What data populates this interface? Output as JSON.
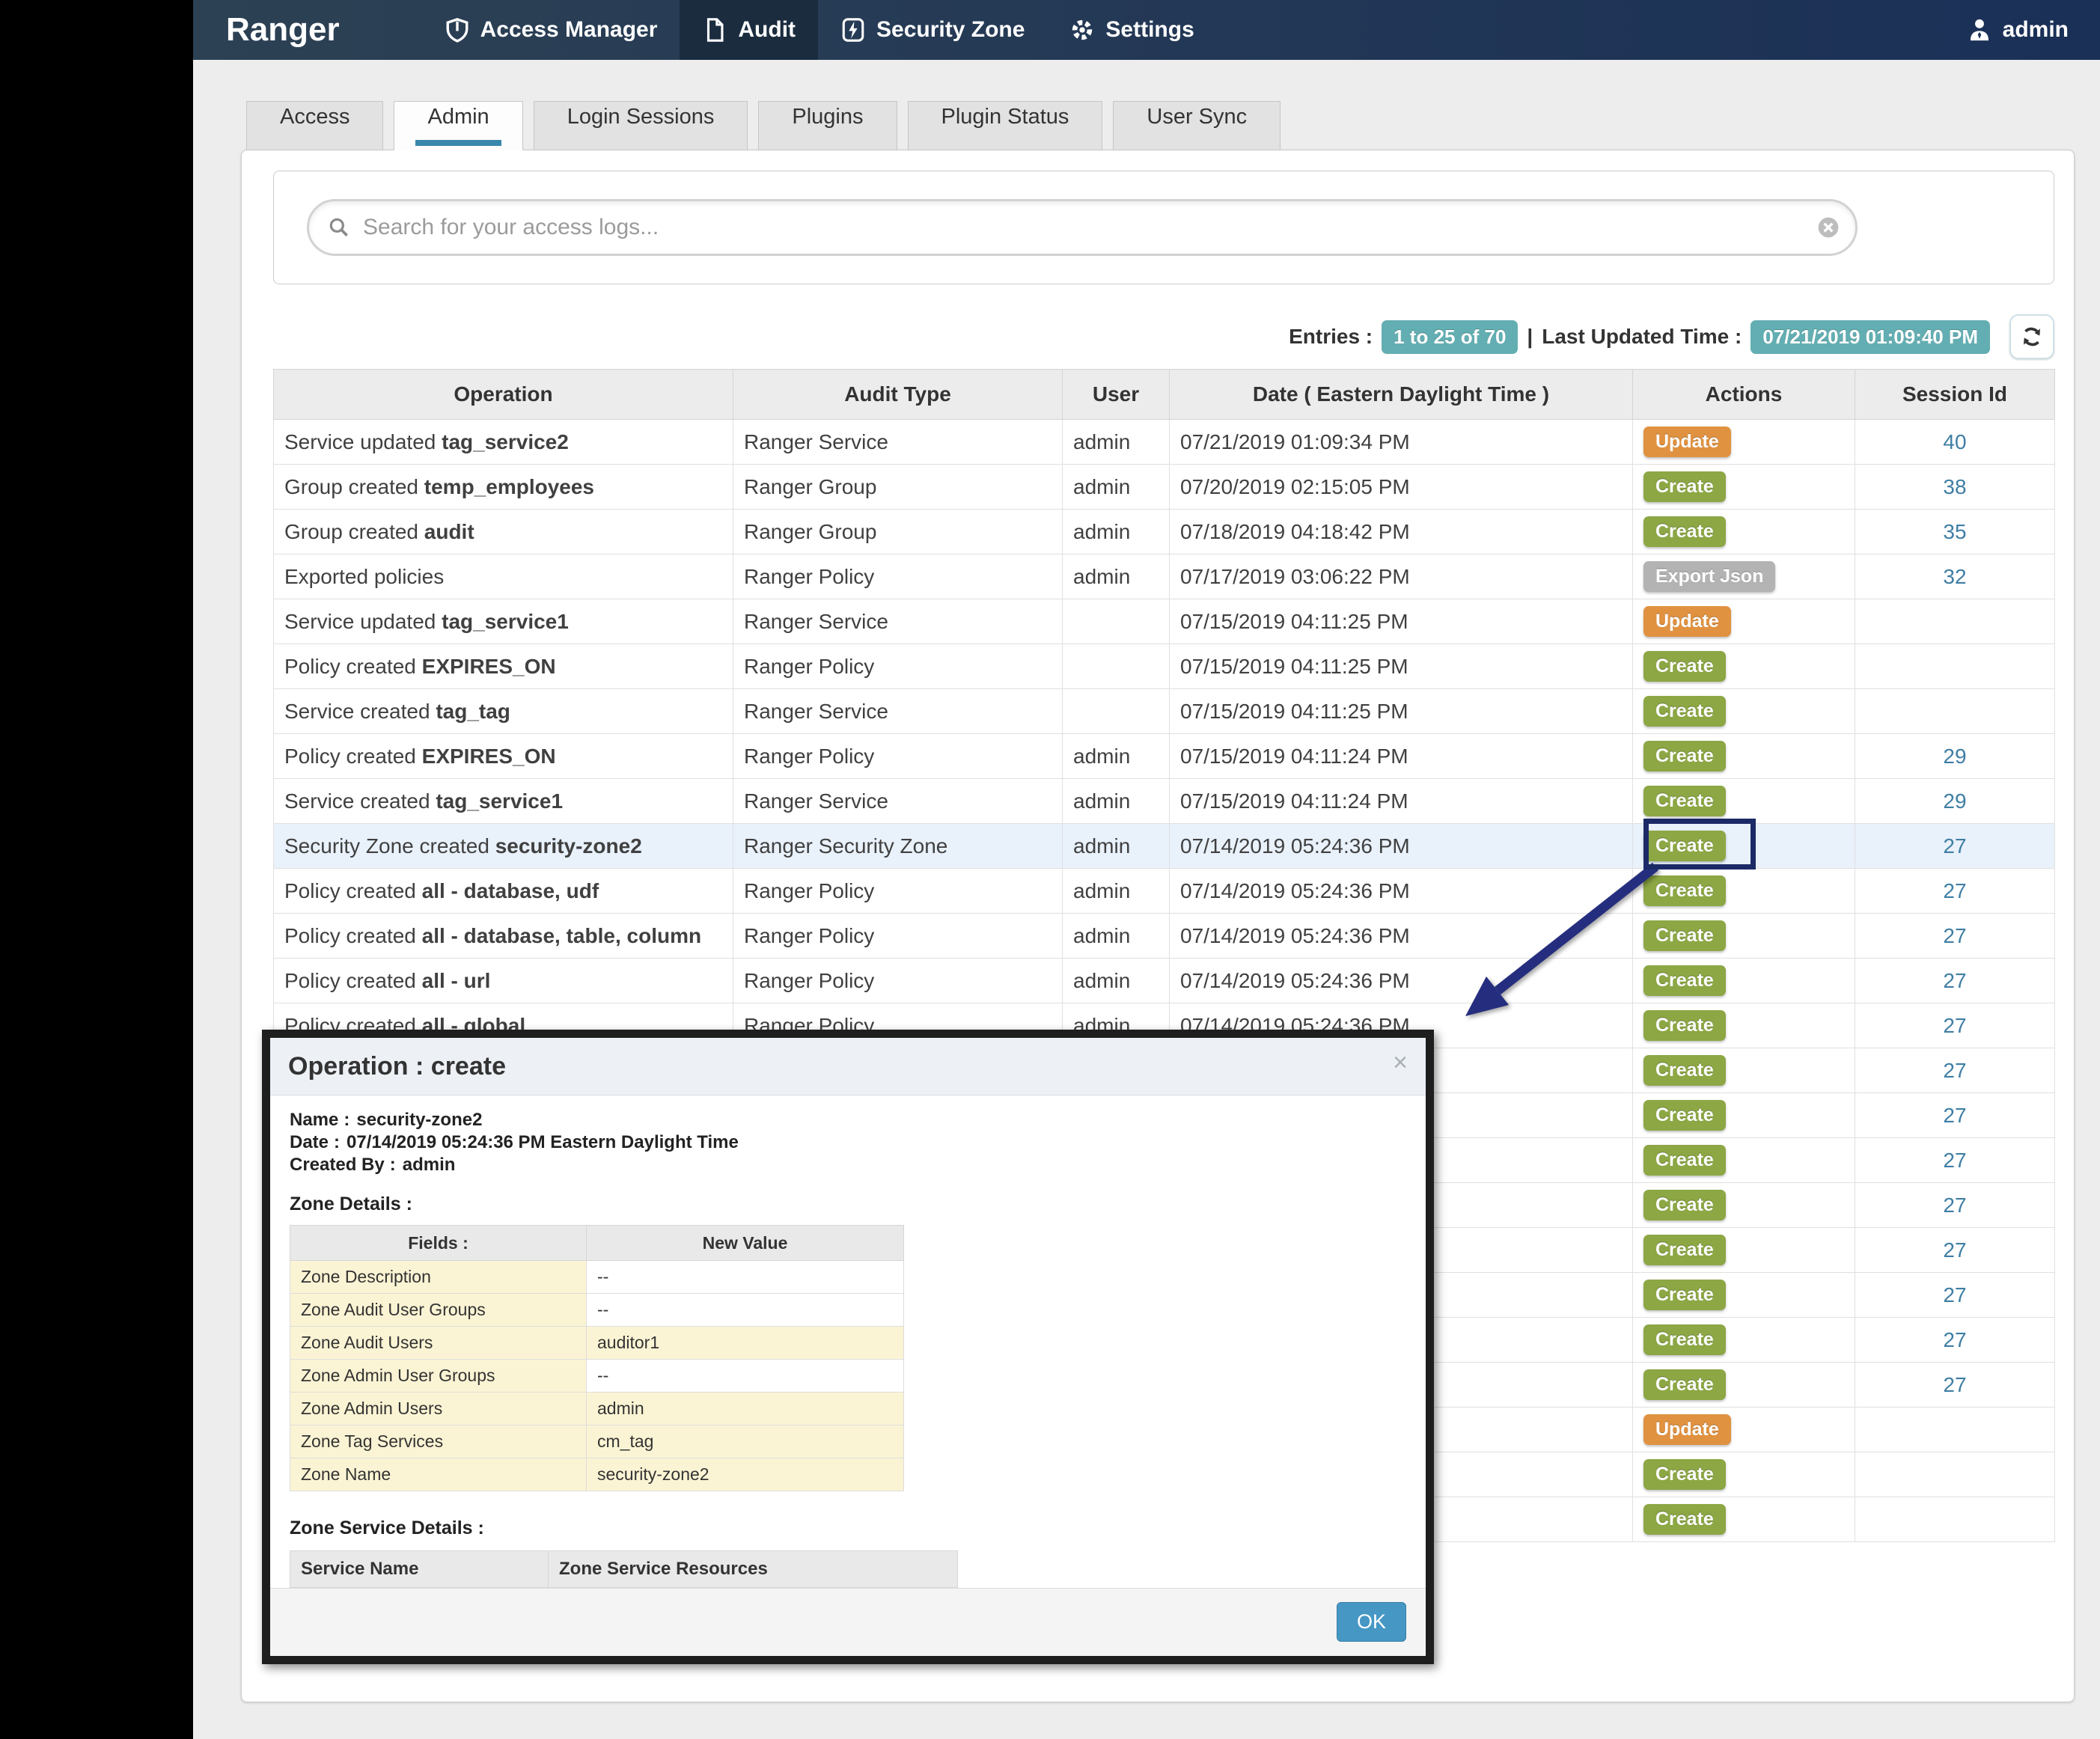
{
  "colors": {
    "navbar_left": "#2d4154",
    "navbar_right": "#1a3057",
    "create_badge": "#8ca744",
    "update_badge": "#e09241",
    "export_badge": "#b3b3b3",
    "teal_badge": "#63aeb2",
    "session_link": "#3f7ea4",
    "tab_underline": "#3a87ad",
    "highlight_row": "#e9f1fb",
    "annotation_navy": "#252e7e",
    "ok_button": "#4697c4"
  },
  "navbar": {
    "brand": "Ranger",
    "items": [
      {
        "label": "Access Manager",
        "icon": "shield-icon",
        "active": false
      },
      {
        "label": "Audit",
        "icon": "file-icon",
        "active": true
      },
      {
        "label": "Security Zone",
        "icon": "bolt-icon",
        "active": false
      },
      {
        "label": "Settings",
        "icon": "gear-icon",
        "active": false
      }
    ],
    "user": {
      "label": "admin",
      "icon": "user-icon"
    }
  },
  "tabs": [
    {
      "label": "Access",
      "active": false
    },
    {
      "label": "Admin",
      "active": true
    },
    {
      "label": "Login Sessions",
      "active": false
    },
    {
      "label": "Plugins",
      "active": false
    },
    {
      "label": "Plugin Status",
      "active": false
    },
    {
      "label": "User Sync",
      "active": false
    }
  ],
  "search": {
    "placeholder": "Search for your access logs...",
    "search_icon": "search-icon",
    "clear_icon": "clear-icon"
  },
  "entries": {
    "label": "Entries :",
    "range": "1 to 25 of 70",
    "separator": "|",
    "updated_label": "Last Updated Time :",
    "updated_time": "07/21/2019 01:09:40 PM",
    "refresh_icon": "refresh-icon"
  },
  "table": {
    "columns": [
      "Operation",
      "Audit Type",
      "User",
      "Date ( Eastern Daylight Time )",
      "Actions",
      "Session Id"
    ],
    "rows": [
      {
        "prefix": "Service updated",
        "bold": "tag_service2",
        "type": "Ranger Service",
        "user": "admin",
        "date": "07/21/2019 01:09:34 PM",
        "action": "Update",
        "style": "update",
        "session": "40"
      },
      {
        "prefix": "Group created",
        "bold": "temp_employees",
        "type": "Ranger Group",
        "user": "admin",
        "date": "07/20/2019 02:15:05 PM",
        "action": "Create",
        "style": "create",
        "session": "38"
      },
      {
        "prefix": "Group created",
        "bold": "audit",
        "type": "Ranger Group",
        "user": "admin",
        "date": "07/18/2019 04:18:42 PM",
        "action": "Create",
        "style": "create",
        "session": "35"
      },
      {
        "prefix": "Exported policies",
        "bold": "",
        "type": "Ranger Policy",
        "user": "admin",
        "date": "07/17/2019 03:06:22 PM",
        "action": "Export Json",
        "style": "export",
        "session": "32"
      },
      {
        "prefix": "Service updated",
        "bold": "tag_service1",
        "type": "Ranger Service",
        "user": "",
        "date": "07/15/2019 04:11:25 PM",
        "action": "Update",
        "style": "update",
        "session": ""
      },
      {
        "prefix": "Policy created",
        "bold": "EXPIRES_ON",
        "type": "Ranger Policy",
        "user": "",
        "date": "07/15/2019 04:11:25 PM",
        "action": "Create",
        "style": "create",
        "session": ""
      },
      {
        "prefix": "Service created",
        "bold": "tag_tag",
        "type": "Ranger Service",
        "user": "",
        "date": "07/15/2019 04:11:25 PM",
        "action": "Create",
        "style": "create",
        "session": ""
      },
      {
        "prefix": "Policy created",
        "bold": "EXPIRES_ON",
        "type": "Ranger Policy",
        "user": "admin",
        "date": "07/15/2019 04:11:24 PM",
        "action": "Create",
        "style": "create",
        "session": "29"
      },
      {
        "prefix": "Service created",
        "bold": "tag_service1",
        "type": "Ranger Service",
        "user": "admin",
        "date": "07/15/2019 04:11:24 PM",
        "action": "Create",
        "style": "create",
        "session": "29"
      },
      {
        "prefix": "Security Zone created",
        "bold": "security-zone2",
        "type": "Ranger Security Zone",
        "user": "admin",
        "date": "07/14/2019 05:24:36 PM",
        "action": "Create",
        "style": "create",
        "session": "27",
        "highlight": true,
        "boxed": true
      },
      {
        "prefix": "Policy created",
        "bold": "all - database, udf",
        "type": "Ranger Policy",
        "user": "admin",
        "date": "07/14/2019 05:24:36 PM",
        "action": "Create",
        "style": "create",
        "session": "27"
      },
      {
        "prefix": "Policy created",
        "bold": "all - database, table, column",
        "type": "Ranger Policy",
        "user": "admin",
        "date": "07/14/2019 05:24:36 PM",
        "action": "Create",
        "style": "create",
        "session": "27"
      },
      {
        "prefix": "Policy created",
        "bold": "all - url",
        "type": "Ranger Policy",
        "user": "admin",
        "date": "07/14/2019 05:24:36 PM",
        "action": "Create",
        "style": "create",
        "session": "27"
      },
      {
        "prefix": "Policy created",
        "bold": "all - global",
        "type": "Ranger Policy",
        "user": "admin",
        "date": "07/14/2019 05:24:36 PM",
        "action": "Create",
        "style": "create",
        "session": "27"
      },
      {
        "prefix": "",
        "bold": "",
        "type": "",
        "user": "",
        "date": "",
        "action": "Create",
        "style": "create",
        "session": "27",
        "covered": true
      },
      {
        "prefix": "",
        "bold": "",
        "type": "",
        "user": "",
        "date": "",
        "action": "Create",
        "style": "create",
        "session": "27",
        "covered": true
      },
      {
        "prefix": "",
        "bold": "",
        "type": "",
        "user": "",
        "date": "",
        "action": "Create",
        "style": "create",
        "session": "27",
        "covered": true
      },
      {
        "prefix": "",
        "bold": "",
        "type": "",
        "user": "",
        "date": "",
        "action": "Create",
        "style": "create",
        "session": "27",
        "covered": true
      },
      {
        "prefix": "",
        "bold": "",
        "type": "",
        "user": "",
        "date": "",
        "action": "Create",
        "style": "create",
        "session": "27",
        "covered": true
      },
      {
        "prefix": "",
        "bold": "",
        "type": "",
        "user": "",
        "date": "",
        "action": "Create",
        "style": "create",
        "session": "27",
        "covered": true
      },
      {
        "prefix": "",
        "bold": "",
        "type": "",
        "user": "",
        "date": "",
        "action": "Create",
        "style": "create",
        "session": "27",
        "covered": true
      },
      {
        "prefix": "",
        "bold": "",
        "type": "",
        "user": "",
        "date": "",
        "action": "Create",
        "style": "create",
        "session": "27",
        "covered": true
      },
      {
        "prefix": "",
        "bold": "",
        "type": "",
        "user": "",
        "date": "",
        "action": "Update",
        "style": "update",
        "session": "",
        "covered": true
      },
      {
        "prefix": "",
        "bold": "",
        "type": "",
        "user": "",
        "date": "",
        "action": "Create",
        "style": "create",
        "session": "",
        "covered": true
      },
      {
        "prefix": "",
        "bold": "",
        "type": "",
        "user": "",
        "date": "",
        "action": "Create",
        "style": "create",
        "session": "",
        "covered": true
      }
    ]
  },
  "modal": {
    "title": "Operation : create",
    "close": "×",
    "colon": ":",
    "info": [
      {
        "label": "Name",
        "value": "security-zone2"
      },
      {
        "label": "Date",
        "value": "07/14/2019 05:24:36 PM Eastern Daylight Time"
      },
      {
        "label": "Created By",
        "value": "admin"
      }
    ],
    "zone_details_label": "Zone Details :",
    "zone_table": {
      "columns": [
        "Fields :",
        "New Value"
      ],
      "rows": [
        {
          "field": "Zone Description",
          "value": "--"
        },
        {
          "field": "Zone Audit User Groups",
          "value": "--"
        },
        {
          "field": "Zone Audit Users",
          "value": "auditor1"
        },
        {
          "field": "Zone Admin User Groups",
          "value": "--"
        },
        {
          "field": "Zone Admin Users",
          "value": "admin"
        },
        {
          "field": "Zone Tag Services",
          "value": "cm_tag"
        },
        {
          "field": "Zone Name",
          "value": "security-zone2"
        }
      ]
    },
    "zone_service_label": "Zone Service Details :",
    "service_table": {
      "columns": [
        "Service Name",
        "Zone Service Resources"
      ]
    },
    "ok_label": "OK"
  }
}
